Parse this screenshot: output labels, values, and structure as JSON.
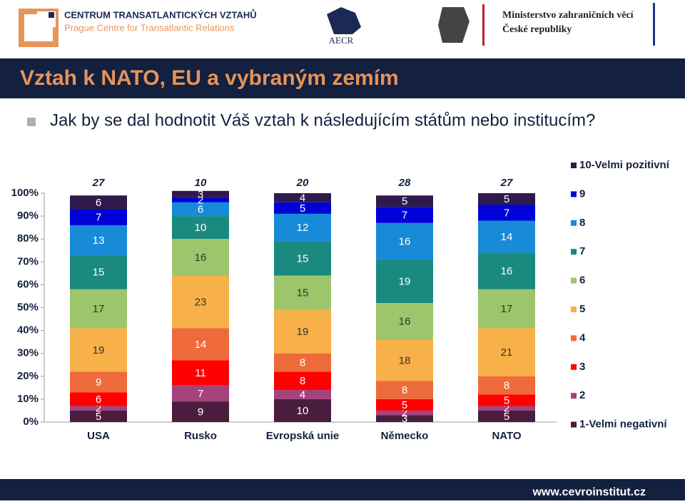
{
  "header": {
    "org1_line1": "CENTRUM TRANSATLANTICKÝCH VZTAHŮ",
    "org1_line2": "Prague Centre for Transatlantic Relations",
    "org2": "AECR",
    "org3_line1": "Ministerstvo zahraničních věcí",
    "org3_line2": "České republiky"
  },
  "slide": {
    "title": "Vztah k NATO, EU a vybraným zemím",
    "subtitle": "Jak by se dal hodnotit Váš vztah k následujícím státům nebo institucím?",
    "footer": "www.cevroinstitut.cz"
  },
  "chart_data": {
    "type": "stacked_bar",
    "categories": [
      "USA",
      "Rusko",
      "Evropská unie",
      "Německo",
      "NATO"
    ],
    "top_values": [
      27,
      10,
      20,
      28,
      27
    ],
    "ylim": [
      0,
      100
    ],
    "yticks": [
      {
        "value": 0,
        "label": "0%"
      },
      {
        "value": 10,
        "label": "10%"
      },
      {
        "value": 20,
        "label": "20%"
      },
      {
        "value": 30,
        "label": "30%"
      },
      {
        "value": 40,
        "label": "40%"
      },
      {
        "value": 50,
        "label": "50%"
      },
      {
        "value": 60,
        "label": "60%"
      },
      {
        "value": 70,
        "label": "70%"
      },
      {
        "value": 80,
        "label": "80%"
      },
      {
        "value": 90,
        "label": "90%"
      },
      {
        "value": 100,
        "label": "100%"
      }
    ],
    "legend": "right",
    "series": [
      {
        "name": "1-Velmi negativní",
        "color": "#4a1d3f",
        "values": [
          5,
          9,
          10,
          3,
          5
        ]
      },
      {
        "name": "2",
        "color": "#a4437e",
        "values": [
          2,
          7,
          4,
          2,
          2
        ]
      },
      {
        "name": "3",
        "color": "#ff0000",
        "values": [
          6,
          11,
          8,
          5,
          5
        ]
      },
      {
        "name": "4",
        "color": "#ef6a3a",
        "values": [
          9,
          14,
          8,
          8,
          8
        ]
      },
      {
        "name": "5",
        "color": "#f8b048",
        "values": [
          19,
          23,
          19,
          18,
          21
        ]
      },
      {
        "name": "6",
        "color": "#9dc56b",
        "values": [
          17,
          16,
          15,
          16,
          17
        ]
      },
      {
        "name": "7",
        "color": "#1a8a80",
        "values": [
          15,
          10,
          15,
          19,
          16
        ]
      },
      {
        "name": "8",
        "color": "#178ad8",
        "values": [
          13,
          6,
          12,
          16,
          14
        ]
      },
      {
        "name": "9",
        "color": "#0000d8",
        "values": [
          7,
          2,
          5,
          7,
          7
        ]
      },
      {
        "name": "10-Velmi pozitivní",
        "color": "#2f1a4d",
        "values": [
          6,
          3,
          4,
          5,
          5
        ]
      }
    ]
  }
}
